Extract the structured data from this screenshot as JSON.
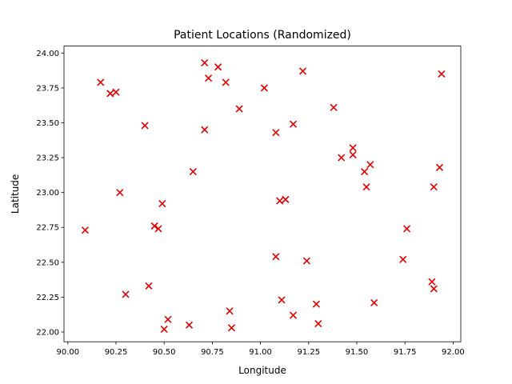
{
  "chart_data": {
    "type": "scatter",
    "title": "Patient Locations (Randomized)",
    "xlabel": "Longitude",
    "ylabel": "Latitude",
    "xlim": [
      89.98,
      92.04
    ],
    "ylim": [
      21.93,
      24.05
    ],
    "xticks": [
      90.0,
      90.25,
      90.5,
      90.75,
      91.0,
      91.25,
      91.5,
      91.75,
      92.0
    ],
    "yticks": [
      22.0,
      22.25,
      22.5,
      22.75,
      23.0,
      23.25,
      23.5,
      23.75,
      24.0
    ],
    "xtick_labels": [
      "90.00",
      "90.25",
      "90.50",
      "90.75",
      "91.00",
      "91.25",
      "91.50",
      "91.75",
      "92.00"
    ],
    "ytick_labels": [
      "22.00",
      "22.25",
      "22.50",
      "22.75",
      "23.00",
      "23.25",
      "23.50",
      "23.75",
      "24.00"
    ],
    "grid": false,
    "marker": "x",
    "color": "#e00000",
    "points": [
      [
        90.71,
        23.93
      ],
      [
        90.78,
        23.9
      ],
      [
        90.73,
        23.82
      ],
      [
        90.82,
        23.79
      ],
      [
        90.17,
        23.79
      ],
      [
        90.22,
        23.71
      ],
      [
        90.25,
        23.72
      ],
      [
        91.02,
        23.75
      ],
      [
        91.22,
        23.87
      ],
      [
        91.94,
        23.85
      ],
      [
        90.89,
        23.6
      ],
      [
        91.38,
        23.61
      ],
      [
        90.4,
        23.48
      ],
      [
        90.71,
        23.45
      ],
      [
        91.08,
        23.43
      ],
      [
        91.17,
        23.49
      ],
      [
        91.48,
        23.32
      ],
      [
        91.48,
        23.27
      ],
      [
        91.42,
        23.25
      ],
      [
        91.57,
        23.2
      ],
      [
        91.54,
        23.15
      ],
      [
        91.93,
        23.18
      ],
      [
        90.65,
        23.15
      ],
      [
        91.55,
        23.04
      ],
      [
        91.9,
        23.04
      ],
      [
        90.27,
        23.0
      ],
      [
        90.49,
        22.92
      ],
      [
        91.1,
        22.94
      ],
      [
        91.13,
        22.95
      ],
      [
        90.09,
        22.73
      ],
      [
        90.45,
        22.76
      ],
      [
        90.47,
        22.74
      ],
      [
        91.76,
        22.74
      ],
      [
        91.08,
        22.54
      ],
      [
        91.24,
        22.51
      ],
      [
        91.74,
        22.52
      ],
      [
        91.89,
        22.36
      ],
      [
        91.9,
        22.31
      ],
      [
        90.42,
        22.33
      ],
      [
        90.3,
        22.27
      ],
      [
        91.11,
        22.23
      ],
      [
        91.29,
        22.2
      ],
      [
        91.59,
        22.21
      ],
      [
        90.84,
        22.15
      ],
      [
        91.17,
        22.12
      ],
      [
        90.52,
        22.09
      ],
      [
        90.63,
        22.05
      ],
      [
        91.3,
        22.06
      ],
      [
        90.5,
        22.02
      ],
      [
        90.85,
        22.03
      ]
    ]
  }
}
